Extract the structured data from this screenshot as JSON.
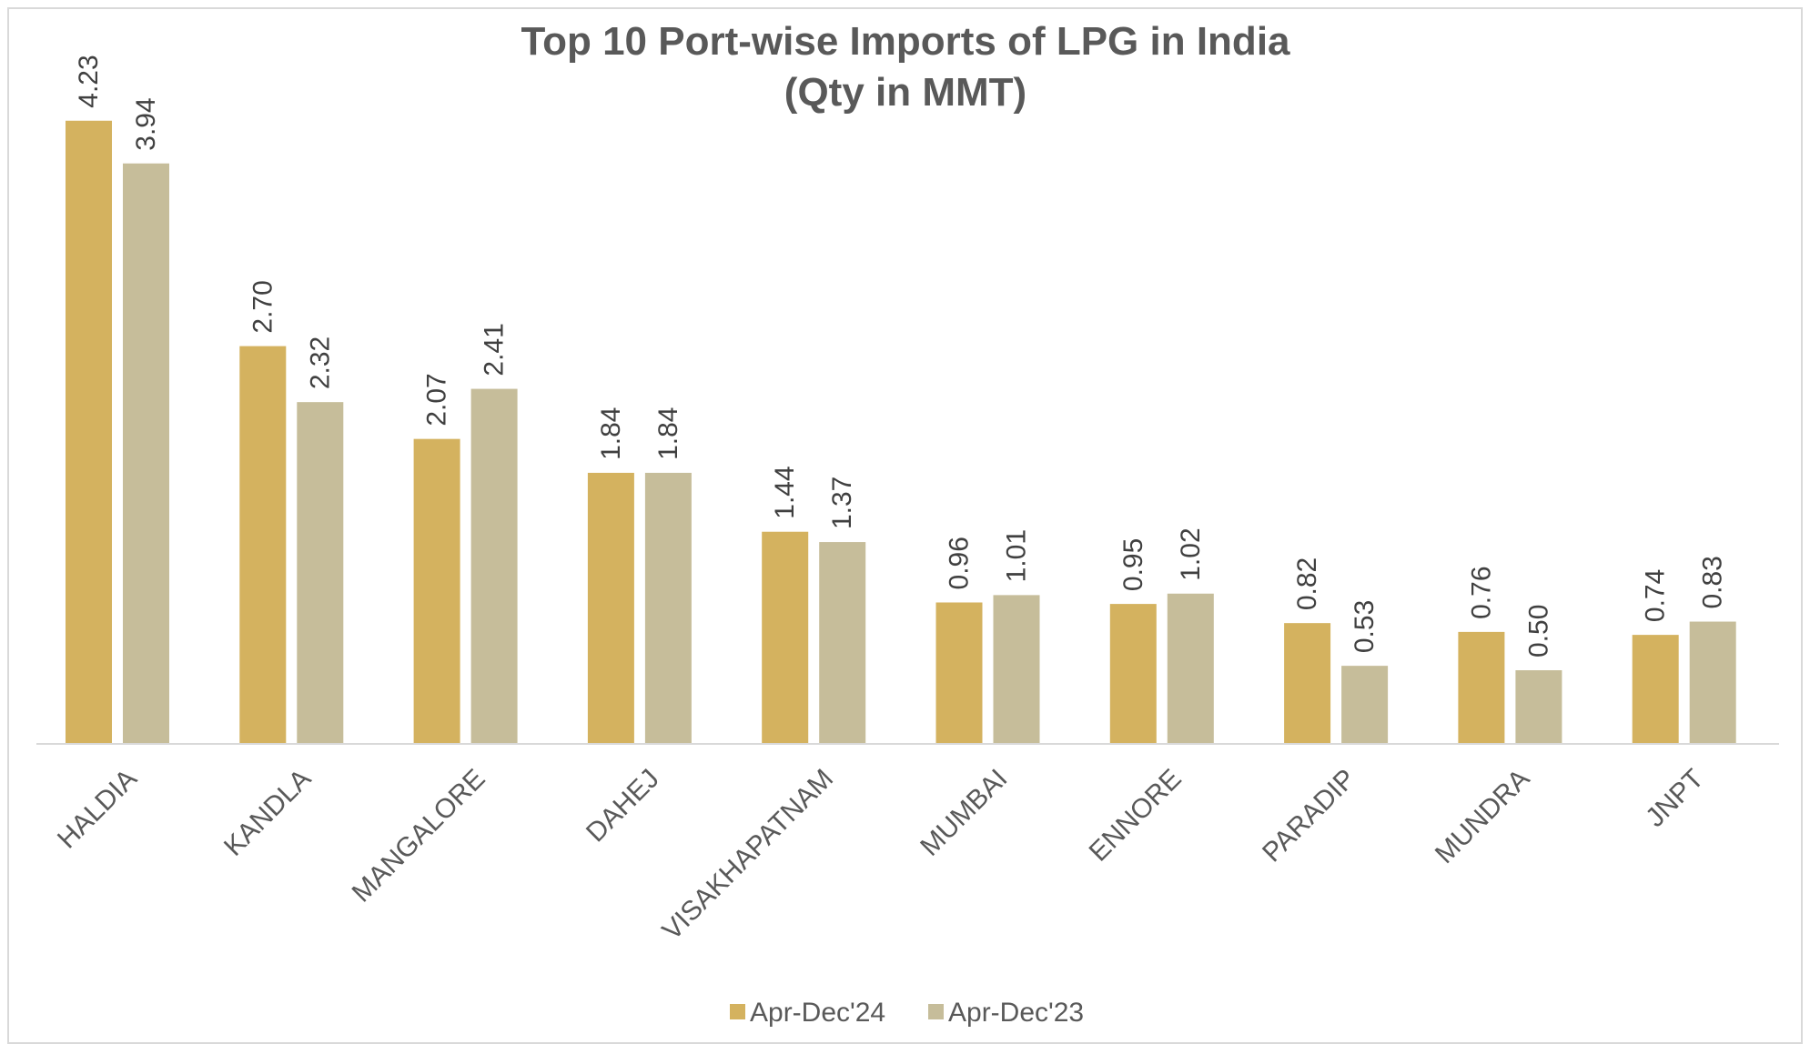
{
  "chart_data": {
    "type": "bar",
    "title": "Top 10 Port-wise Imports of LPG in India",
    "subtitle": "(Qty in MMT)",
    "xlabel": "",
    "ylabel": "",
    "categories": [
      "HALDIA",
      "KANDLA",
      "MANGALORE",
      "DAHEJ",
      "VISAKHAPATNAM",
      "MUMBAI",
      "ENNORE",
      "PARADIP",
      "MUNDRA",
      "JNPT"
    ],
    "series": [
      {
        "name": "Apr-Dec'24",
        "color": "#d4b25f",
        "values": [
          4.23,
          2.7,
          2.07,
          1.84,
          1.44,
          0.96,
          0.95,
          0.82,
          0.76,
          0.74
        ],
        "labels": [
          "4.23",
          "2.70",
          "2.07",
          "1.84",
          "1.44",
          "0.96",
          "0.95",
          "0.82",
          "0.76",
          "0.74"
        ]
      },
      {
        "name": "Apr-Dec'23",
        "color": "#c6bd9a",
        "values": [
          3.94,
          2.32,
          2.41,
          1.84,
          1.37,
          1.01,
          1.02,
          0.53,
          0.5,
          0.83
        ],
        "labels": [
          "3.94",
          "2.32",
          "2.41",
          "1.84",
          "1.37",
          "1.01",
          "1.02",
          "0.53",
          "0.50",
          "0.83"
        ]
      }
    ],
    "ylim": [
      0,
      5
    ],
    "grid": false,
    "legend_position": "bottom",
    "axis_color": "#d9d9d9"
  }
}
